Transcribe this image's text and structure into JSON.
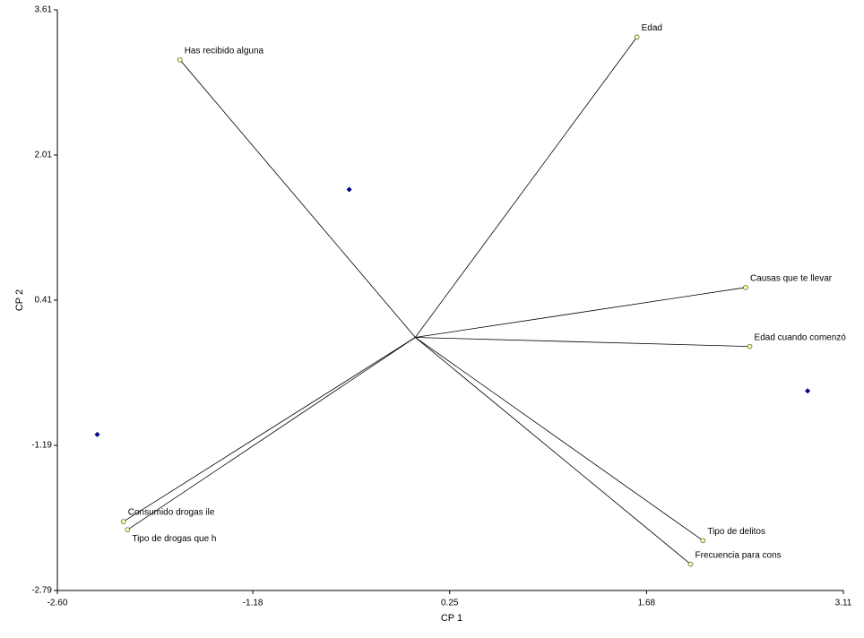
{
  "chart_data": {
    "type": "biplot",
    "x_label": "CP 1",
    "y_label": "CP 2",
    "xlim": [
      -2.6,
      3.11
    ],
    "ylim": [
      -2.79,
      3.61
    ],
    "xticks": [
      {
        "value": -2.6,
        "label": "-2.60"
      },
      -1.18,
      0.25,
      1.68,
      3.11
    ],
    "yticks": [
      3.61,
      2.01,
      0.41,
      -1.19,
      -2.79
    ],
    "variables": {
      "color": "#ffff99",
      "labels": [
        "Has recibido alguna",
        "Edad",
        "Causas que te llevar",
        "Edad cuando comenzó",
        "Tipo de delitos",
        "Frecuencia para cons",
        "Consumido drogas ile",
        "Tipo de drogas que h"
      ],
      "x": [
        -1.71,
        1.61,
        2.4,
        2.43,
        2.09,
        2.0,
        -2.12,
        -2.09
      ],
      "y": [
        3.06,
        3.31,
        0.55,
        -0.1,
        -2.24,
        -2.5,
        -2.03,
        -2.12
      ]
    },
    "observations": {
      "color": "#00008b",
      "x": [
        -0.48,
        -2.31,
        2.85
      ],
      "y": [
        1.63,
        -1.07,
        -0.59
      ]
    }
  }
}
